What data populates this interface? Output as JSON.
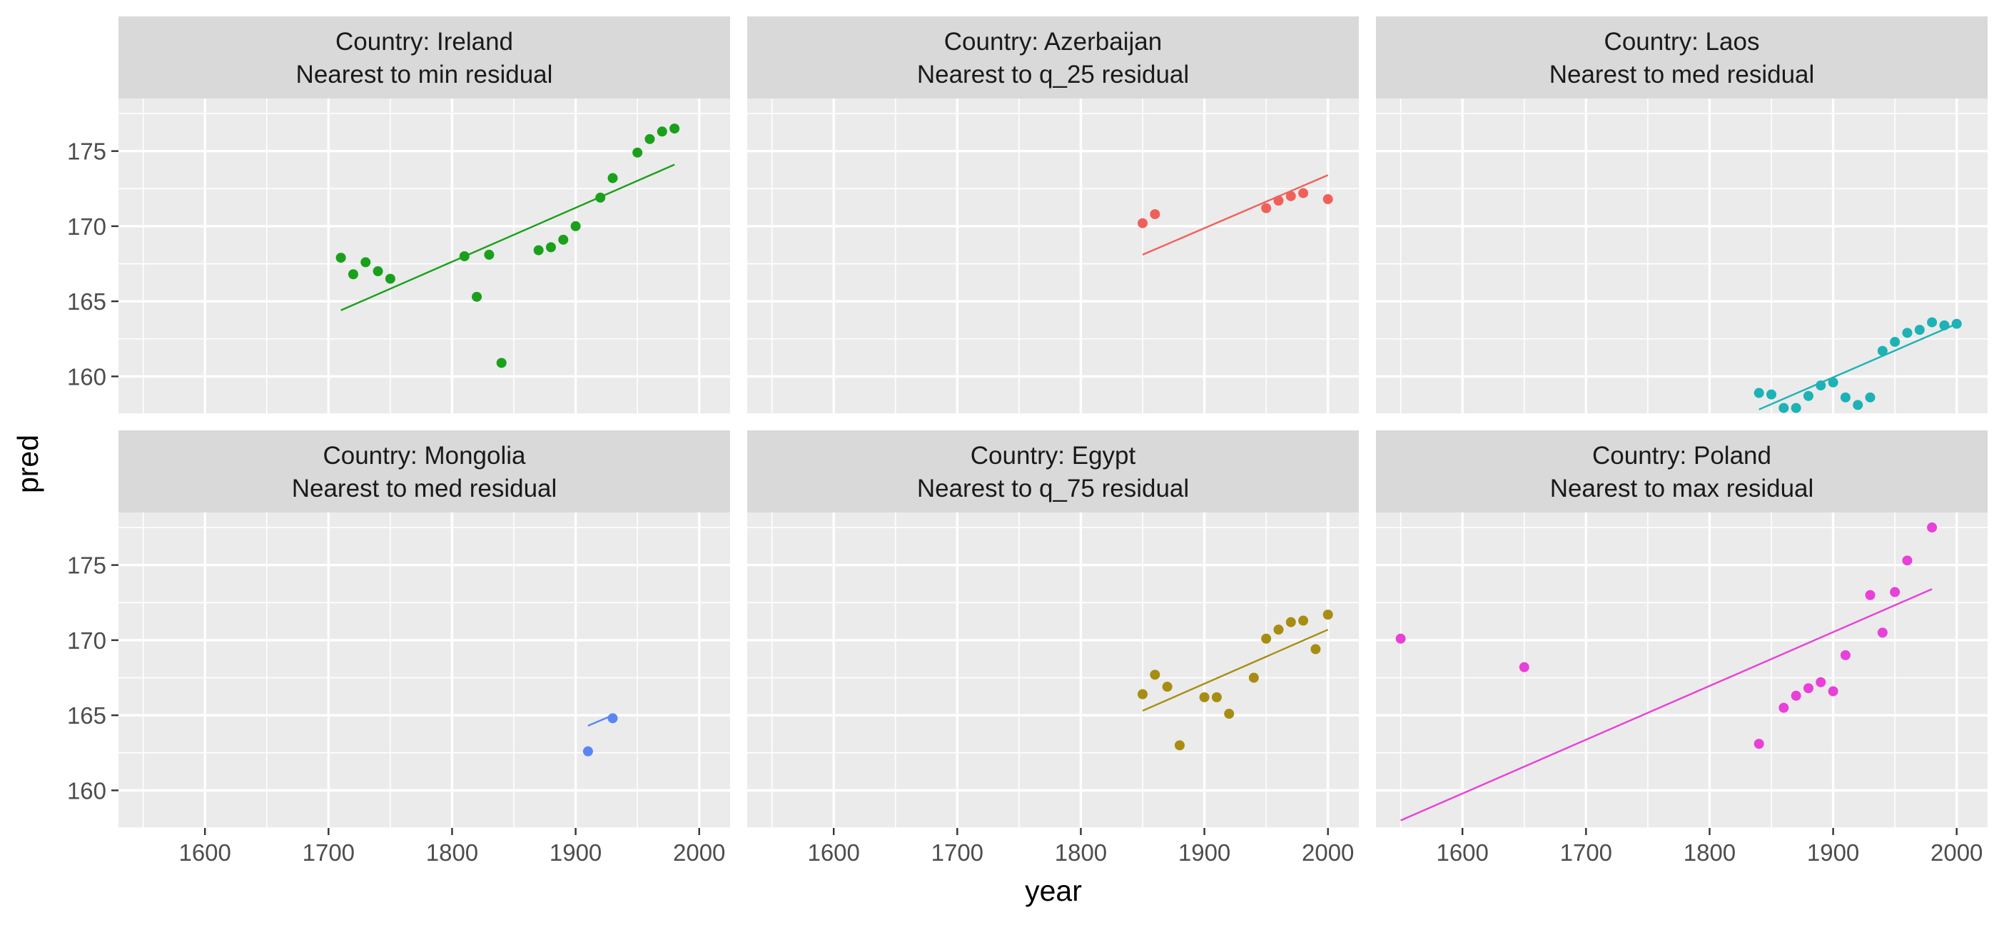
{
  "chart_data": {
    "type": "scatter",
    "xlabel": "year",
    "ylabel": "pred",
    "xlim": [
      1530,
      2025
    ],
    "ylim": [
      157.5,
      178.5
    ],
    "x_ticks": [
      1600,
      1700,
      1800,
      1900,
      2000
    ],
    "y_ticks": [
      160,
      165,
      170,
      175
    ],
    "grid": true,
    "layout": "2 rows x 3 columns facets",
    "panels": [
      {
        "strip_line1": "Country: Ireland",
        "strip_line2": "Nearest to min residual",
        "color": "#1aa01a",
        "points": [
          [
            1710,
            167.9
          ],
          [
            1720,
            166.8
          ],
          [
            1730,
            167.6
          ],
          [
            1740,
            167.0
          ],
          [
            1750,
            166.5
          ],
          [
            1810,
            168.0
          ],
          [
            1820,
            165.3
          ],
          [
            1830,
            168.1
          ],
          [
            1840,
            160.9
          ],
          [
            1870,
            168.4
          ],
          [
            1880,
            168.6
          ],
          [
            1890,
            169.1
          ],
          [
            1900,
            170.0
          ],
          [
            1920,
            171.9
          ],
          [
            1930,
            173.2
          ],
          [
            1950,
            174.9
          ],
          [
            1960,
            175.8
          ],
          [
            1970,
            176.3
          ],
          [
            1980,
            176.5
          ]
        ],
        "fit_line": [
          [
            1710,
            164.4
          ],
          [
            1980,
            174.1
          ]
        ]
      },
      {
        "strip_line1": "Country: Azerbaijan",
        "strip_line2": "Nearest to q_25 residual",
        "color": "#f0605a",
        "points": [
          [
            1850,
            170.2
          ],
          [
            1860,
            170.8
          ],
          [
            1950,
            171.2
          ],
          [
            1960,
            171.7
          ],
          [
            1970,
            172.0
          ],
          [
            1980,
            172.2
          ],
          [
            2000,
            171.8
          ]
        ],
        "fit_line": [
          [
            1850,
            168.1
          ],
          [
            2000,
            173.4
          ]
        ]
      },
      {
        "strip_line1": "Country: Laos",
        "strip_line2": "Nearest to med residual",
        "color": "#1cb2b6",
        "points": [
          [
            1840,
            158.9
          ],
          [
            1850,
            158.8
          ],
          [
            1860,
            157.9
          ],
          [
            1870,
            157.9
          ],
          [
            1880,
            158.7
          ],
          [
            1890,
            159.4
          ],
          [
            1900,
            159.6
          ],
          [
            1910,
            158.6
          ],
          [
            1920,
            158.1
          ],
          [
            1930,
            158.6
          ],
          [
            1940,
            161.7
          ],
          [
            1950,
            162.3
          ],
          [
            1960,
            162.9
          ],
          [
            1970,
            163.1
          ],
          [
            1980,
            163.6
          ],
          [
            1990,
            163.4
          ],
          [
            2000,
            163.5
          ]
        ],
        "fit_line": [
          [
            1840,
            157.8
          ],
          [
            2000,
            163.5
          ]
        ]
      },
      {
        "strip_line1": "Country: Mongolia",
        "strip_line2": "Nearest to med residual",
        "color": "#5a86f5",
        "points": [
          [
            1910,
            162.6
          ],
          [
            1930,
            164.8
          ]
        ],
        "fit_line": [
          [
            1910,
            164.3
          ],
          [
            1930,
            165.0
          ]
        ]
      },
      {
        "strip_line1": "Country: Egypt",
        "strip_line2": "Nearest to q_75 residual",
        "color": "#a78d12",
        "points": [
          [
            1850,
            166.4
          ],
          [
            1860,
            167.7
          ],
          [
            1870,
            166.9
          ],
          [
            1880,
            163.0
          ],
          [
            1900,
            166.2
          ],
          [
            1910,
            166.2
          ],
          [
            1920,
            165.1
          ],
          [
            1940,
            167.5
          ],
          [
            1950,
            170.1
          ],
          [
            1960,
            170.7
          ],
          [
            1970,
            171.2
          ],
          [
            1980,
            171.3
          ],
          [
            1990,
            169.4
          ],
          [
            2000,
            171.7
          ]
        ],
        "fit_line": [
          [
            1850,
            165.3
          ],
          [
            2000,
            170.7
          ]
        ]
      },
      {
        "strip_line1": "Country: Poland",
        "strip_line2": "Nearest to max residual",
        "color": "#e840d8",
        "points": [
          [
            1550,
            170.1
          ],
          [
            1650,
            168.2
          ],
          [
            1840,
            163.1
          ],
          [
            1860,
            165.5
          ],
          [
            1870,
            166.3
          ],
          [
            1880,
            166.8
          ],
          [
            1890,
            167.2
          ],
          [
            1900,
            166.6
          ],
          [
            1910,
            169.0
          ],
          [
            1930,
            173.0
          ],
          [
            1940,
            170.5
          ],
          [
            1950,
            173.2
          ],
          [
            1960,
            175.3
          ],
          [
            1980,
            177.5
          ]
        ],
        "fit_line": [
          [
            1550,
            158.0
          ],
          [
            1980,
            173.4
          ]
        ]
      }
    ]
  }
}
